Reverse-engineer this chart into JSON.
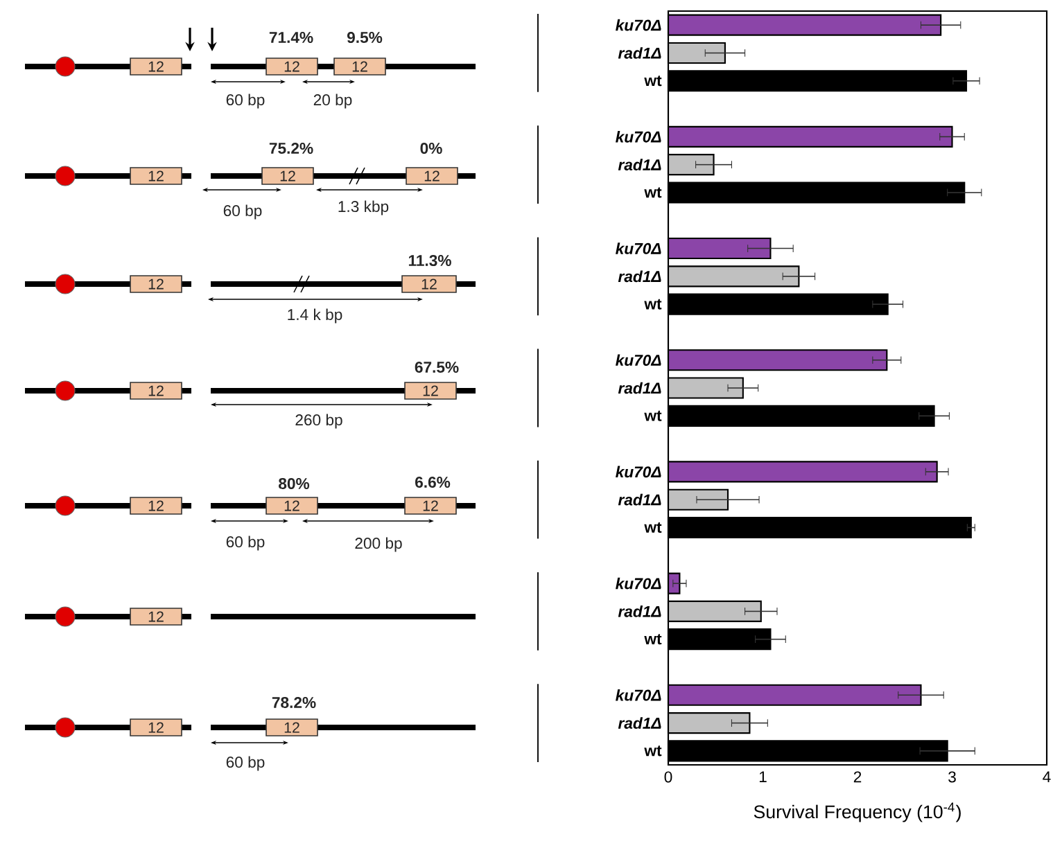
{
  "chart_data": {
    "type": "bar",
    "orientation": "horizontal",
    "xlabel": "Survival Frequency (10$^{-4}$)",
    "xlim": [
      0,
      4
    ],
    "xticks": [
      0,
      1,
      2,
      3,
      4
    ],
    "categories": [
      "*ku70Δ*",
      "*rad1Δ*",
      "wt",
      null,
      "*ku70Δ*",
      "*rad1Δ*",
      "wt",
      null,
      "*ku70Δ*",
      "*rad1Δ*",
      "wt",
      null,
      "*ku70Δ*",
      "*rad1Δ*",
      "wt",
      null,
      "*ku70Δ*",
      "*rad1Δ*",
      "wt",
      null,
      "*ku70Δ*",
      "*rad1Δ*",
      "wt",
      null,
      "*ku70Δ*",
      "*rad1Δ*",
      "wt"
    ],
    "values": [
      2.88,
      0.6,
      3.15,
      null,
      3.0,
      0.48,
      3.13,
      null,
      1.08,
      1.38,
      2.32,
      null,
      2.31,
      0.79,
      2.81,
      null,
      2.84,
      0.63,
      3.2,
      null,
      0.12,
      0.98,
      1.08,
      null,
      2.67,
      0.86,
      2.95
    ],
    "errors": [
      0.21,
      0.21,
      0.14,
      null,
      0.13,
      0.19,
      0.18,
      null,
      0.24,
      0.17,
      0.16,
      null,
      0.15,
      0.16,
      0.16,
      null,
      0.12,
      0.33,
      0.04,
      null,
      0.07,
      0.17,
      0.16,
      null,
      0.24,
      0.19,
      0.29
    ],
    "colors": [
      "#8b45a8",
      "#c0c0c0",
      "#000000",
      null,
      "#8b45a8",
      "#c0c0c0",
      "#000000",
      null,
      "#8b45a8",
      "#c0c0c0",
      "#000000",
      null,
      "#8b45a8",
      "#c0c0c0",
      "#000000",
      null,
      "#8b45a8",
      "#c0c0c0",
      "#000000",
      null,
      "#8b45a8",
      "#c0c0c0",
      "#000000",
      null,
      "#8b45a8",
      "#c0c0c0",
      "#000000"
    ],
    "annotations": [
      "71.4%",
      "9.5%",
      "12",
      "12",
      "12",
      "60 bp",
      "20 bp",
      "75.2%",
      "0%",
      "12",
      "12",
      "12",
      "60 bp",
      "1.3 kbp",
      "11.3%",
      "12",
      "12",
      "1.4 k bp",
      "67.5%",
      "12",
      "12",
      "260 bp",
      "80%",
      "6.6%",
      "12",
      "12",
      "12",
      "60 bp",
      "200 bp",
      "12",
      "78.2%",
      "12",
      "12",
      "60 bp"
    ]
  }
}
